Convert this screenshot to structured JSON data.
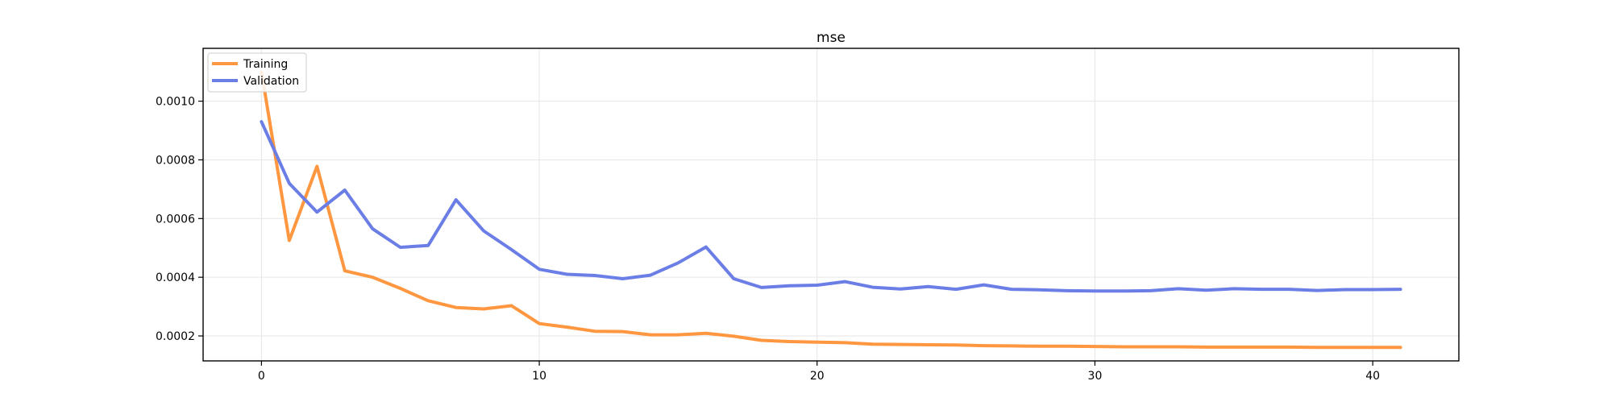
{
  "chart_data": {
    "type": "line",
    "title": "mse",
    "xlabel": "",
    "ylabel": "",
    "xlim": [
      -2.1,
      43.1
    ],
    "ylim": [
      0.000115,
      0.00118
    ],
    "grid": true,
    "legend_position": "top-left",
    "x_ticks": [
      0,
      10,
      20,
      30,
      40
    ],
    "x_tick_labels": [
      "0",
      "10",
      "20",
      "30",
      "40"
    ],
    "y_ticks": [
      0.0002,
      0.0004,
      0.0006,
      0.0008,
      0.001
    ],
    "y_tick_labels": [
      "0.0002",
      "0.0004",
      "0.0006",
      "0.0008",
      "0.0010"
    ],
    "x": [
      0,
      1,
      2,
      3,
      4,
      5,
      6,
      7,
      8,
      9,
      10,
      11,
      12,
      13,
      14,
      15,
      16,
      17,
      18,
      19,
      20,
      21,
      22,
      23,
      24,
      25,
      26,
      27,
      28,
      29,
      30,
      31,
      32,
      33,
      34,
      35,
      36,
      37,
      38,
      39,
      40,
      41
    ],
    "series": [
      {
        "name": "Training",
        "color": "#ff9640",
        "values": [
          0.0011,
          0.000525,
          0.000778,
          0.000422,
          0.0004,
          0.000362,
          0.00032,
          0.000297,
          0.000292,
          0.000303,
          0.000242,
          0.00023,
          0.000216,
          0.000215,
          0.000204,
          0.000204,
          0.000209,
          0.000199,
          0.000185,
          0.000181,
          0.000179,
          0.000177,
          0.000172,
          0.000171,
          0.00017,
          0.000169,
          0.000167,
          0.000166,
          0.000165,
          0.000165,
          0.000164,
          0.000163,
          0.000163,
          0.000163,
          0.000162,
          0.000162,
          0.000162,
          0.000162,
          0.000161,
          0.000161,
          0.000161,
          0.000161
        ]
      },
      {
        "name": "Validation",
        "color": "#6b7ee6",
        "values": [
          0.00093,
          0.00072,
          0.000622,
          0.000697,
          0.000565,
          0.000502,
          0.000508,
          0.000664,
          0.000558,
          0.000494,
          0.000427,
          0.00041,
          0.000406,
          0.000395,
          0.000407,
          0.000449,
          0.000503,
          0.000395,
          0.000365,
          0.000371,
          0.000373,
          0.000385,
          0.000366,
          0.00036,
          0.000368,
          0.000359,
          0.000374,
          0.000359,
          0.000357,
          0.000354,
          0.000353,
          0.000353,
          0.000354,
          0.000361,
          0.000356,
          0.000361,
          0.000359,
          0.000359,
          0.000355,
          0.000358,
          0.000358,
          0.000359
        ]
      }
    ]
  }
}
